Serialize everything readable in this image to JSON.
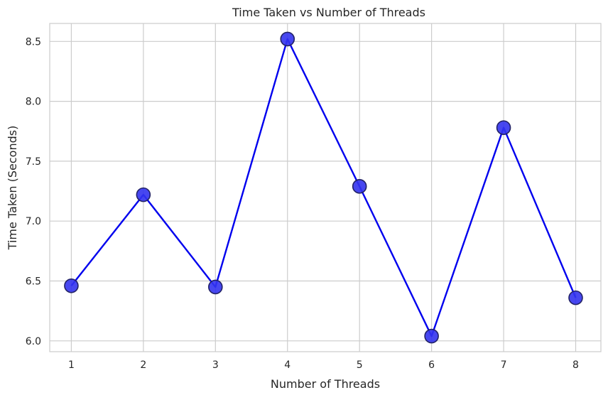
{
  "chart_data": {
    "type": "line",
    "title": "Time Taken vs Number of Threads",
    "xlabel": "Number of Threads",
    "ylabel": "Time Taken (Seconds)",
    "x": [
      1,
      2,
      3,
      4,
      5,
      6,
      7,
      8
    ],
    "y": [
      6.46,
      7.22,
      6.45,
      8.52,
      7.29,
      6.04,
      7.78,
      6.36
    ],
    "xlim": [
      0.7,
      8.35
    ],
    "ylim": [
      5.91,
      8.65
    ],
    "xticks": [
      "1",
      "2",
      "3",
      "4",
      "5",
      "6",
      "7",
      "8"
    ],
    "yticks": [
      "6.0",
      "6.5",
      "7.0",
      "7.5",
      "8.0",
      "8.5"
    ],
    "grid": true,
    "line_color": "#0000ee",
    "marker_color": "#3333ee",
    "marker_edge_color": "#222266",
    "grid_color": "#cccccc",
    "axes_edge_color": "#cccccc"
  }
}
